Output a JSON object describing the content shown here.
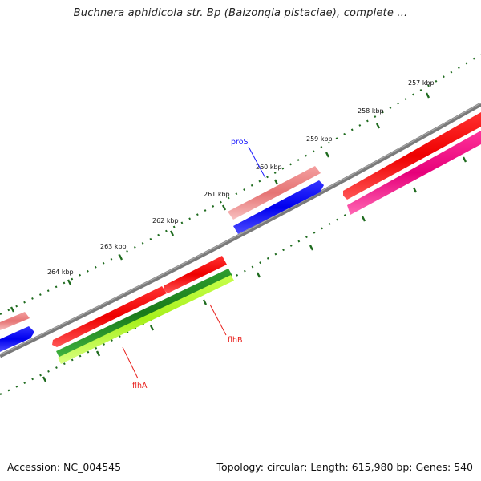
{
  "title": "Buchnera aphidicola str. Bp (Baizongia pistaciae), complete ...",
  "footer": {
    "accession": "Accession: NC_004545",
    "summary": "Topology: circular; Length: 615,980 bp; Genes: 540"
  },
  "colors": {
    "backbone": "#808080",
    "tick": "#1f6b1f",
    "gene_label_blue": "#1a1aff",
    "gene_label_red": "#e8201c"
  },
  "scale": {
    "unit": "kbp",
    "tick_labels": [
      "257 kbp",
      "258 kbp",
      "259 kbp",
      "260 kbp",
      "261 kbp",
      "262 kbp",
      "263 kbp",
      "264 kbp"
    ]
  },
  "features": [
    {
      "track": "outer-1",
      "color": "#f08080",
      "role": "gene"
    },
    {
      "track": "outer-2",
      "color": "#0000ff",
      "role": "cds"
    },
    {
      "track": "inner-1",
      "color": "#ff0000",
      "role": "gene"
    },
    {
      "track": "inner-2",
      "color": "#ff1493",
      "role": "cds"
    },
    {
      "track": "inner-2",
      "color": "#228b22",
      "role": "cds"
    },
    {
      "track": "inner-3",
      "color": "#adff2f",
      "role": "cds"
    }
  ],
  "gene_labels": {
    "proS": "proS",
    "flhB": "flhB",
    "flhA": "flhA"
  }
}
